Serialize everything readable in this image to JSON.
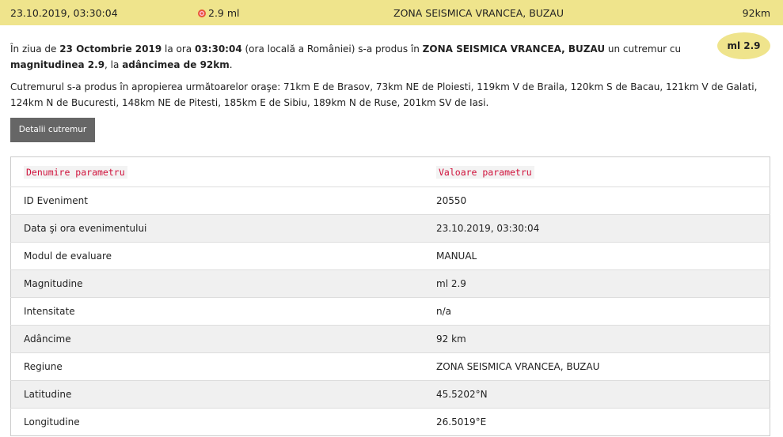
{
  "topbar": {
    "datetime": "23.10.2019, 03:30:04",
    "magnitude": "2.9 ml",
    "region": "ZONA SEISMICA VRANCEA, BUZAU",
    "depth": "92km",
    "icon": "seismic-target-icon",
    "color": "#efe48c"
  },
  "summary": {
    "t1": "În ziua de ",
    "date": "23 Octombrie 2019",
    "t2": " la ora ",
    "time": "03:30:04",
    "t3": " (ora locală a României) s-a produs în ",
    "region": "ZONA SEISMICA VRANCEA, BUZAU",
    "t4": " un cutremur cu ",
    "mag_label": "magnitudinea 2.9",
    "t5": ", la ",
    "depth_label": "adâncimea de 92km",
    "t6": "."
  },
  "badge": "ml 2.9",
  "nearby": "Cutremurul s-a produs în apropierea următoarelor oraşe: 71km E de Brasov, 73km NE de Ploiesti, 119km V de Braila, 120km S de Bacau, 121km V de Galati, 124km N de Bucuresti, 148km NE de Pitesti, 185km E de Sibiu, 189km N de Ruse, 201km SV de Iasi.",
  "details_button": "Detalii cutremur",
  "table": {
    "headers": [
      "Denumire parametru",
      "Valoare parametru"
    ],
    "rows": [
      [
        "ID Eveniment",
        "20550"
      ],
      [
        "Data şi ora evenimentului",
        "23.10.2019, 03:30:04"
      ],
      [
        "Modul de evaluare",
        "MANUAL"
      ],
      [
        "Magnitudine",
        "ml 2.9"
      ],
      [
        "Intensitate",
        "n/a"
      ],
      [
        "Adâncime",
        "92 km"
      ],
      [
        "Regiune",
        "ZONA SEISMICA VRANCEA, BUZAU"
      ],
      [
        "Latitudine",
        "45.5202°N"
      ],
      [
        "Longitudine",
        "26.5019°E"
      ]
    ]
  }
}
